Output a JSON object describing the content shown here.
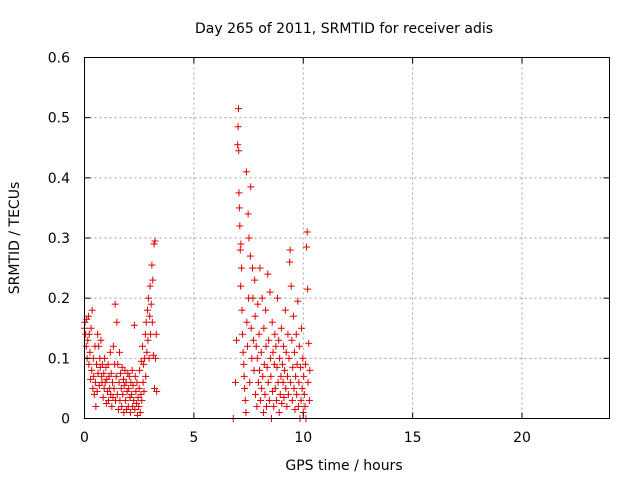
{
  "chart_data": {
    "type": "scatter",
    "title": "Day 265 of 2011, SRMTID for receiver adis",
    "xlabel": "GPS time / hours",
    "ylabel": "SRMTID / TECUs",
    "xlim": [
      0,
      24
    ],
    "ylim": [
      0,
      0.6
    ],
    "grid": true,
    "marker": "+",
    "color": "#e00000",
    "x_ticks": [
      0,
      5,
      10,
      15,
      20
    ],
    "x_tick_labels": [
      "0",
      "5",
      "10",
      "15",
      "20"
    ],
    "y_ticks": [
      0,
      0.1,
      0.2,
      0.3,
      0.4,
      0.5,
      0.6
    ],
    "y_tick_labels": [
      "0",
      "0.1",
      "0.2",
      "0.3",
      "0.4",
      "0.5",
      "0.6"
    ],
    "series": [
      {
        "name": "SRMTID",
        "points": [
          [
            0.0,
            0.15
          ],
          [
            0.02,
            0.16
          ],
          [
            0.05,
            0.14
          ],
          [
            0.08,
            0.12
          ],
          [
            0.1,
            0.165
          ],
          [
            0.12,
            0.1
          ],
          [
            0.15,
            0.13
          ],
          [
            0.18,
            0.17
          ],
          [
            0.2,
            0.09
          ],
          [
            0.22,
            0.14
          ],
          [
            0.25,
            0.11
          ],
          [
            0.28,
            0.065
          ],
          [
            0.3,
            0.15
          ],
          [
            0.33,
            0.08
          ],
          [
            0.35,
            0.18
          ],
          [
            0.38,
            0.05
          ],
          [
            0.4,
            0.1
          ],
          [
            0.42,
            0.07
          ],
          [
            0.45,
            0.04
          ],
          [
            0.48,
            0.12
          ],
          [
            0.5,
            0.06
          ],
          [
            0.52,
            0.02
          ],
          [
            0.55,
            0.09
          ],
          [
            0.58,
            0.045
          ],
          [
            0.6,
            0.14
          ],
          [
            0.62,
            0.075
          ],
          [
            0.65,
            0.12
          ],
          [
            0.68,
            0.055
          ],
          [
            0.7,
            0.1
          ],
          [
            0.72,
            0.085
          ],
          [
            0.75,
            0.13
          ],
          [
            0.78,
            0.07
          ],
          [
            0.8,
            0.06
          ],
          [
            0.82,
            0.09
          ],
          [
            0.85,
            0.035
          ],
          [
            0.88,
            0.075
          ],
          [
            0.9,
            0.05
          ],
          [
            0.92,
            0.1
          ],
          [
            0.95,
            0.06
          ],
          [
            0.98,
            0.085
          ],
          [
            1.0,
            0.025
          ],
          [
            1.02,
            0.065
          ],
          [
            1.05,
            0.045
          ],
          [
            1.08,
            0.09
          ],
          [
            1.1,
            0.03
          ],
          [
            1.12,
            0.07
          ],
          [
            1.15,
            0.05
          ],
          [
            1.18,
            0.11
          ],
          [
            1.2,
            0.04
          ],
          [
            1.22,
            0.075
          ],
          [
            1.25,
            0.02
          ],
          [
            1.28,
            0.06
          ],
          [
            1.3,
            0.035
          ],
          [
            1.32,
            0.12
          ],
          [
            1.35,
            0.05
          ],
          [
            1.38,
            0.09
          ],
          [
            1.4,
            0.19
          ],
          [
            1.42,
            0.03
          ],
          [
            1.45,
            0.07
          ],
          [
            1.48,
            0.16
          ],
          [
            1.5,
            0.04
          ],
          [
            1.52,
            0.09
          ],
          [
            1.55,
            0.015
          ],
          [
            1.58,
            0.06
          ],
          [
            1.6,
            0.11
          ],
          [
            1.62,
            0.03
          ],
          [
            1.65,
            0.075
          ],
          [
            1.68,
            0.05
          ],
          [
            1.7,
            0.02
          ],
          [
            1.72,
            0.085
          ],
          [
            1.75,
            0.04
          ],
          [
            1.78,
            0.065
          ],
          [
            1.8,
            0.01
          ],
          [
            1.82,
            0.055
          ],
          [
            1.85,
            0.08
          ],
          [
            1.88,
            0.03
          ],
          [
            1.9,
            0.06
          ],
          [
            1.92,
            0.015
          ],
          [
            1.95,
            0.045
          ],
          [
            1.98,
            0.075
          ],
          [
            2.0,
            0.02
          ],
          [
            2.02,
            0.05
          ],
          [
            2.05,
            0.07
          ],
          [
            2.08,
            0.035
          ],
          [
            2.1,
            0.01
          ],
          [
            2.12,
            0.06
          ],
          [
            2.15,
            0.04
          ],
          [
            2.18,
            0.08
          ],
          [
            2.2,
            0.02
          ],
          [
            2.22,
            0.055
          ],
          [
            2.25,
            0.03
          ],
          [
            2.28,
            0.155
          ],
          [
            2.3,
            0.015
          ],
          [
            2.32,
            0.07
          ],
          [
            2.35,
            0.045
          ],
          [
            2.38,
            0.025
          ],
          [
            2.4,
            0.06
          ],
          [
            2.42,
            0.005
          ],
          [
            2.45,
            0.035
          ],
          [
            2.48,
            0.02
          ],
          [
            2.5,
            0.05
          ],
          [
            2.52,
            0.08
          ],
          [
            2.55,
            0.01
          ],
          [
            2.58,
            0.04
          ],
          [
            2.6,
            0.095
          ],
          [
            2.62,
            0.03
          ],
          [
            2.65,
            0.12
          ],
          [
            2.68,
            0.06
          ],
          [
            2.7,
            0.09
          ],
          [
            2.72,
            0.045
          ],
          [
            2.75,
            0.1
          ],
          [
            2.78,
            0.14
          ],
          [
            2.8,
            0.07
          ],
          [
            2.82,
            0.16
          ],
          [
            2.85,
            0.11
          ],
          [
            2.88,
            0.18
          ],
          [
            2.9,
            0.13
          ],
          [
            2.92,
            0.2
          ],
          [
            2.95,
            0.1
          ],
          [
            2.98,
            0.17
          ],
          [
            3.0,
            0.22
          ],
          [
            3.02,
            0.14
          ],
          [
            3.05,
            0.19
          ],
          [
            3.08,
            0.255
          ],
          [
            3.1,
            0.16
          ],
          [
            3.12,
            0.23
          ],
          [
            3.15,
            0.105
          ],
          [
            3.18,
            0.29
          ],
          [
            3.2,
            0.05
          ],
          [
            3.22,
            0.295
          ],
          [
            3.25,
            0.1
          ],
          [
            3.28,
            0.14
          ],
          [
            3.3,
            0.045
          ],
          [
            6.8,
            0.0
          ],
          [
            6.9,
            0.06
          ],
          [
            6.95,
            0.13
          ],
          [
            7.0,
            0.455
          ],
          [
            7.02,
            0.485
          ],
          [
            7.04,
            0.515
          ],
          [
            7.05,
            0.445
          ],
          [
            7.06,
            0.375
          ],
          [
            7.08,
            0.35
          ],
          [
            7.1,
            0.32
          ],
          [
            7.12,
            0.28
          ],
          [
            7.14,
            0.22
          ],
          [
            7.15,
            0.29
          ],
          [
            7.18,
            0.25
          ],
          [
            7.2,
            0.18
          ],
          [
            7.22,
            0.14
          ],
          [
            7.25,
            0.11
          ],
          [
            7.28,
            0.09
          ],
          [
            7.3,
            0.07
          ],
          [
            7.32,
            0.05
          ],
          [
            7.35,
            0.03
          ],
          [
            7.38,
            0.01
          ],
          [
            7.4,
            0.41
          ],
          [
            7.42,
            0.16
          ],
          [
            7.45,
            0.12
          ],
          [
            7.48,
            0.34
          ],
          [
            7.5,
            0.2
          ],
          [
            7.52,
            0.3
          ],
          [
            7.55,
            0.06
          ],
          [
            7.58,
            0.27
          ],
          [
            7.6,
            0.385
          ],
          [
            7.62,
            0.15
          ],
          [
            7.65,
            0.1
          ],
          [
            7.68,
            0.25
          ],
          [
            7.7,
            0.2
          ],
          [
            7.72,
            0.13
          ],
          [
            7.75,
            0.08
          ],
          [
            7.78,
            0.23
          ],
          [
            7.8,
            0.17
          ],
          [
            7.82,
            0.04
          ],
          [
            7.85,
            0.12
          ],
          [
            7.88,
            0.02
          ],
          [
            7.9,
            0.1
          ],
          [
            7.92,
            0.19
          ],
          [
            7.95,
            0.06
          ],
          [
            7.98,
            0.14
          ],
          [
            8.0,
            0.08
          ],
          [
            8.02,
            0.25
          ],
          [
            8.05,
            0.03
          ],
          [
            8.08,
            0.11
          ],
          [
            8.1,
            0.05
          ],
          [
            8.12,
            0.2
          ],
          [
            8.15,
            0.07
          ],
          [
            8.18,
            0.01
          ],
          [
            8.2,
            0.15
          ],
          [
            8.22,
            0.09
          ],
          [
            8.25,
            0.04
          ],
          [
            8.28,
            0.18
          ],
          [
            8.3,
            0.12
          ],
          [
            8.32,
            0.02
          ],
          [
            8.35,
            0.085
          ],
          [
            8.38,
            0.24
          ],
          [
            8.4,
            0.06
          ],
          [
            8.42,
            0.13
          ],
          [
            8.45,
            0.03
          ],
          [
            8.48,
            0.21
          ],
          [
            8.5,
            0.1
          ],
          [
            8.52,
            0.07
          ],
          [
            8.55,
            0.0
          ],
          [
            8.58,
            0.16
          ],
          [
            8.6,
            0.045
          ],
          [
            8.62,
            0.11
          ],
          [
            8.65,
            0.02
          ],
          [
            8.68,
            0.09
          ],
          [
            8.7,
            0.14
          ],
          [
            8.72,
            0.05
          ],
          [
            8.75,
            0.12
          ],
          [
            8.78,
            0.03
          ],
          [
            8.8,
            0.085
          ],
          [
            8.82,
            0.2
          ],
          [
            8.85,
            0.06
          ],
          [
            8.88,
            0.13
          ],
          [
            8.9,
            0.01
          ],
          [
            8.92,
            0.1
          ],
          [
            8.95,
            0.04
          ],
          [
            8.98,
            0.07
          ],
          [
            9.0,
            0.15
          ],
          [
            9.02,
            0.025
          ],
          [
            9.05,
            0.09
          ],
          [
            9.08,
            0.06
          ],
          [
            9.1,
            0.12
          ],
          [
            9.12,
            0.035
          ],
          [
            9.15,
            0.08
          ],
          [
            9.18,
            0.18
          ],
          [
            9.2,
            0.05
          ],
          [
            9.22,
            0.11
          ],
          [
            9.25,
            0.02
          ],
          [
            9.28,
            0.07
          ],
          [
            9.3,
            0.14
          ],
          [
            9.32,
            0.04
          ],
          [
            9.35,
            0.1
          ],
          [
            9.38,
            0.26
          ],
          [
            9.4,
            0.28
          ],
          [
            9.42,
            0.06
          ],
          [
            9.45,
            0.22
          ],
          [
            9.48,
            0.13
          ],
          [
            9.5,
            0.03
          ],
          [
            9.52,
            0.085
          ],
          [
            9.55,
            0.17
          ],
          [
            9.58,
            0.05
          ],
          [
            9.6,
            0.11
          ],
          [
            9.62,
            0.015
          ],
          [
            9.65,
            0.07
          ],
          [
            9.68,
            0.14
          ],
          [
            9.7,
            0.04
          ],
          [
            9.72,
            0.09
          ],
          [
            9.75,
            0.195
          ],
          [
            9.78,
            0.02
          ],
          [
            9.8,
            0.06
          ],
          [
            9.82,
            0.12
          ],
          [
            9.85,
            0.0
          ],
          [
            9.88,
            0.085
          ],
          [
            9.9,
            0.03
          ],
          [
            9.92,
            0.15
          ],
          [
            9.95,
            0.05
          ],
          [
            9.98,
            0.1
          ],
          [
            10.0,
            0.01
          ],
          [
            10.02,
            0.07
          ],
          [
            10.05,
            0.04
          ],
          [
            10.08,
            0.02
          ],
          [
            10.1,
            0.09
          ],
          [
            10.12,
            0.0
          ],
          [
            10.15,
            0.285
          ],
          [
            10.18,
            0.31
          ],
          [
            10.2,
            0.215
          ],
          [
            10.22,
            0.06
          ],
          [
            10.25,
            0.125
          ],
          [
            10.28,
            0.03
          ],
          [
            10.3,
            0.08
          ]
        ]
      }
    ]
  }
}
